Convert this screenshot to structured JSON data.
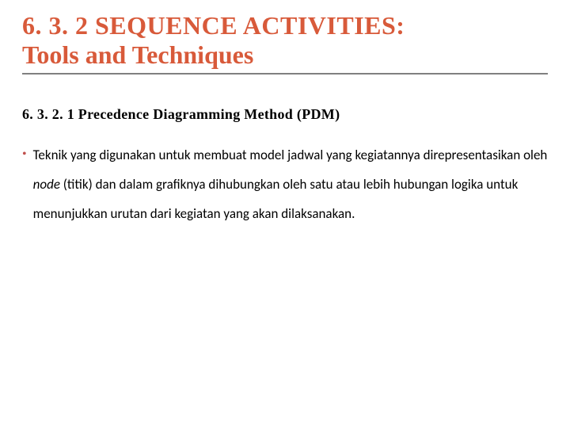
{
  "colors": {
    "title": "#d85a3a",
    "bullet": "#c0504d",
    "divider": "#808080",
    "text": "#000000",
    "background": "#ffffff"
  },
  "typography": {
    "title_fontsize": 32,
    "title_weight": "bold",
    "subhead_fontsize": 18,
    "subhead_weight": "bold",
    "body_fontsize": 17,
    "body_lineheight": 2.2,
    "title_family": "Georgia, serif",
    "body_family": "Calibri, sans-serif"
  },
  "title": {
    "line1": "6. 3. 2 SEQUENCE ACTIVITIES:",
    "line2": "Tools and Techniques"
  },
  "subhead": "6. 3. 2. 1 Precedence Diagramming Method (PDM)",
  "bullet_marker": "•",
  "body": {
    "pre": "Teknik yang digunakan untuk membuat model jadwal yang kegiatannya direpresentasikan oleh ",
    "italic": "node",
    "post": " (titik) dan dalam grafiknya dihubungkan oleh satu atau lebih hubungan logika untuk menunjukkan urutan dari kegiatan yang akan dilaksanakan."
  }
}
